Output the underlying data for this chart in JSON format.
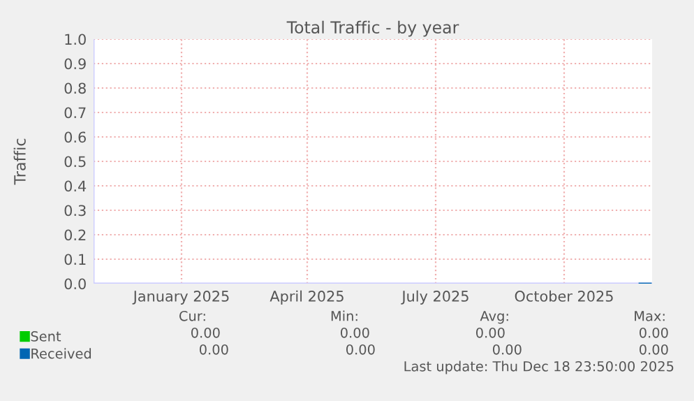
{
  "chart_data": {
    "type": "line",
    "title": "Total Traffic - by year",
    "ylabel": "Traffic",
    "xlim": [
      "2024-11-14",
      "2025-12-19"
    ],
    "xticks": [
      {
        "value": "2025-01-16",
        "label": "January 2025"
      },
      {
        "value": "2025-04-16",
        "label": "April 2025"
      },
      {
        "value": "2025-07-17",
        "label": "July 2025"
      },
      {
        "value": "2025-10-17",
        "label": "October 2025"
      }
    ],
    "ylim": [
      0,
      1
    ],
    "yticks": [
      {
        "value": 0,
        "label": "0.0"
      },
      {
        "value": 0.1,
        "label": "0.1"
      },
      {
        "value": 0.2,
        "label": "0.2"
      },
      {
        "value": 0.3,
        "label": "0.3"
      },
      {
        "value": 0.4,
        "label": "0.4"
      },
      {
        "value": 0.5,
        "label": "0.5"
      },
      {
        "value": 0.6,
        "label": "0.6"
      },
      {
        "value": 0.7,
        "label": "0.7"
      },
      {
        "value": 0.8,
        "label": "0.8"
      },
      {
        "value": 0.9,
        "label": "0.9"
      },
      {
        "value": 1,
        "label": "1.0"
      }
    ],
    "grid": true,
    "legend": "bottom left",
    "series": [
      {
        "name": "Sent",
        "color": "#00cc00"
      },
      {
        "name": "Received",
        "color": "#0066b3",
        "x": [
          "2025-12-10",
          "2025-12-18"
        ],
        "values": [
          0,
          0
        ]
      }
    ],
    "annotations": [
      "Cur:",
      "Min:",
      "Avg:",
      "Max:",
      "0.00",
      "0.00",
      "0.00",
      "0.00",
      "0.00",
      "0.00",
      "0.00",
      "0.00",
      "Last update: Thu Dec 18 23:50:00 2025"
    ]
  }
}
